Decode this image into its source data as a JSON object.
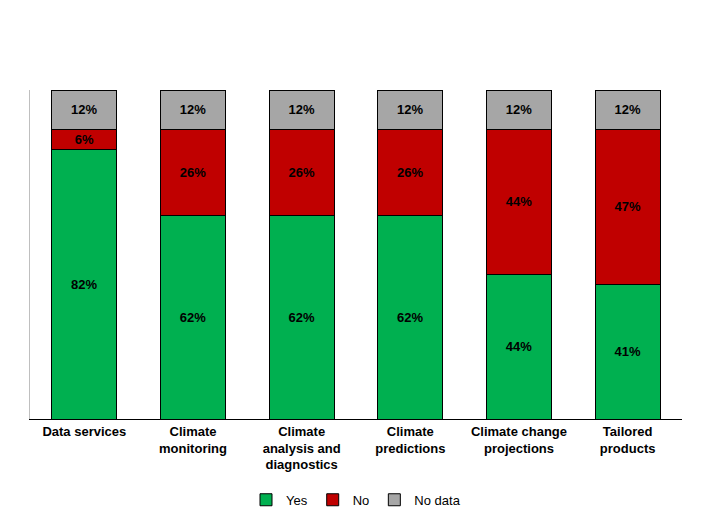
{
  "chart_data": {
    "type": "bar",
    "stacked": true,
    "categories": [
      "Data services",
      "Climate monitoring",
      "Climate analysis and diagnostics",
      "Climate predictions",
      "Climate change projections",
      "Tailored products"
    ],
    "series": [
      {
        "name": "Yes",
        "color": "#00b050",
        "values": [
          82,
          62,
          62,
          62,
          44,
          41
        ],
        "value_labels": [
          "82%",
          "62%",
          "62%",
          "62%",
          "44%",
          "41%"
        ]
      },
      {
        "name": "No",
        "color": "#c00000",
        "values": [
          6,
          26,
          26,
          26,
          44,
          47
        ],
        "value_labels": [
          "6%",
          "26%",
          "26%",
          "26%",
          "44%",
          "47%"
        ]
      },
      {
        "name": "No data",
        "color": "#a6a6a6",
        "values": [
          12,
          12,
          12,
          12,
          12,
          12
        ],
        "value_labels": [
          "12%",
          "12%",
          "12%",
          "12%",
          "12%",
          "12%"
        ]
      }
    ],
    "ylim": [
      0,
      100
    ],
    "data_labels": true,
    "tick_labels": "x",
    "grid": false,
    "legend": "bottom"
  }
}
